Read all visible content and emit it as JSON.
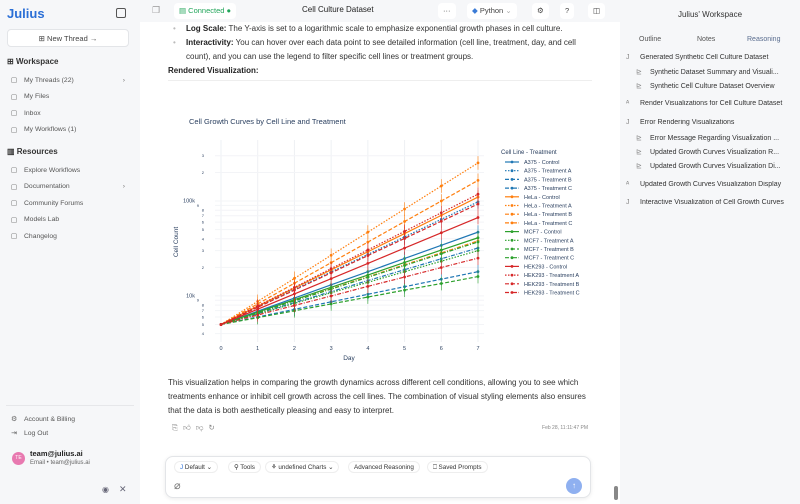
{
  "app": {
    "logo": "Julius",
    "new_thread": "New Thread →"
  },
  "sidebar": {
    "workspace": "Workspace",
    "workspace_items": [
      {
        "label": "My Threads (22)",
        "icon": "chat-icon",
        "chevron": true
      },
      {
        "label": "My Files",
        "icon": "file-icon"
      },
      {
        "label": "Inbox",
        "icon": "inbox-icon"
      },
      {
        "label": "My Workflows (1)",
        "icon": "workflow-icon"
      }
    ],
    "resources": "Resources",
    "resource_items": [
      {
        "label": "Explore Workflows",
        "icon": "trend-icon"
      },
      {
        "label": "Documentation",
        "icon": "book-icon",
        "chevron": true
      },
      {
        "label": "Community Forums",
        "icon": "users-icon"
      },
      {
        "label": "Models Lab",
        "icon": "flask-icon"
      },
      {
        "label": "Changelog",
        "icon": "history-icon"
      }
    ],
    "account": "Account & Billing",
    "logout": "Log Out",
    "user": {
      "initials": "TE",
      "name": "team@julius.ai",
      "sub": "Email • team@julius.ai",
      "avatar_color": "#e879b0"
    }
  },
  "topbar": {
    "status": "Connected",
    "status_color": "#22a55a",
    "title": "Cell Culture Dataset",
    "more": "···",
    "language": "Python"
  },
  "content": {
    "bullets": [
      {
        "bold": "Log Scale:",
        "text": " The Y-axis is set to a logarithmic scale to emphasize exponential growth phases in cell culture."
      },
      {
        "bold": "Interactivity:",
        "text": " You can hover over each data point to see detailed information (cell line, treatment, day, and cell count), and you can use the legend to filter specific cell lines or treatment groups."
      }
    ],
    "heading": "Rendered Visualization:",
    "summary": "This visualization helps in comparing the growth dynamics across different cell conditions, allowing you to see which treatments enhance or inhibit cell growth across the cell lines. The combination of visual styling elements also ensures that the data is both aesthetically pleasing and easy to interpret.",
    "timestamp": "Feb 28, 11:11:47 PM"
  },
  "chat": {
    "chips": [
      "Default",
      "Tools",
      "undefined Charts",
      "Advanced Reasoning",
      "Saved Prompts"
    ]
  },
  "right_panel": {
    "title": "Julius' Workspace",
    "tabs": [
      "Outline",
      "Notes",
      "Reasoning"
    ],
    "outline": [
      {
        "text": "Generated Synthetic Cell Culture Dataset",
        "level": 0,
        "mark": "J"
      },
      {
        "text": "Synthetic Dataset Summary and Visuali...",
        "level": 1,
        "mark": "⊵"
      },
      {
        "text": "Synthetic Cell Culture Dataset Overview",
        "level": 1,
        "mark": "⊵"
      },
      {
        "text": "Render Visualizations for Cell Culture Dataset",
        "level": 0,
        "mark": "ᴬ"
      },
      {
        "text": "Error Rendering Visualizations",
        "level": 0,
        "mark": "J"
      },
      {
        "text": "Error Message Regarding Visualization ...",
        "level": 1,
        "mark": "⊵"
      },
      {
        "text": "Updated Growth Curves Visualization R...",
        "level": 1,
        "mark": "⊵"
      },
      {
        "text": "Updated Growth Curves Visualization Di...",
        "level": 1,
        "mark": "⊵"
      },
      {
        "text": "Updated Growth Curves Visualization Display",
        "level": 0,
        "mark": "ᴬ"
      },
      {
        "text": "Interactive Visualization of Cell Growth Curves",
        "level": 0,
        "mark": "J"
      }
    ]
  },
  "chart_data": {
    "type": "line",
    "title": "Cell Growth Curves by Cell Line and Treatment",
    "xlabel": "Day",
    "ylabel": "Cell Count",
    "y_scale": "log",
    "ylim": [
      3600,
      380000
    ],
    "x": [
      0,
      1,
      2,
      3,
      4,
      5,
      6,
      7
    ],
    "y_ticks": [
      {
        "v": 4000,
        "l": "4"
      },
      {
        "v": 5000,
        "l": "5"
      },
      {
        "v": 6000,
        "l": "6"
      },
      {
        "v": 7000,
        "l": "7"
      },
      {
        "v": 8000,
        "l": "8"
      },
      {
        "v": 9000,
        "l": "9"
      },
      {
        "v": 10000,
        "l": "10k"
      },
      {
        "v": 20000,
        "l": "2"
      },
      {
        "v": 30000,
        "l": "3"
      },
      {
        "v": 40000,
        "l": "4"
      },
      {
        "v": 50000,
        "l": "5"
      },
      {
        "v": 60000,
        "l": "6"
      },
      {
        "v": 70000,
        "l": "7"
      },
      {
        "v": 80000,
        "l": "8"
      },
      {
        "v": 90000,
        "l": "9"
      },
      {
        "v": 100000,
        "l": "100k"
      },
      {
        "v": 200000,
        "l": "2"
      },
      {
        "v": 300000,
        "l": "3"
      }
    ],
    "legend_title": "Cell Line - Treatment",
    "legend": "right",
    "error_bars": true,
    "series": [
      {
        "name": "A375 - Control",
        "color": "#1f77b4",
        "dash": "solid",
        "values": [
          5000,
          6890,
          9480,
          13100,
          18000,
          24800,
          34100,
          47000
        ]
      },
      {
        "name": "A375 - Treatment A",
        "color": "#1f77b4",
        "dash": "dot",
        "values": [
          5000,
          7650,
          11700,
          17900,
          27400,
          41900,
          64100,
          98000
        ]
      },
      {
        "name": "A375 - Treatment B",
        "color": "#1f77b4",
        "dash": "dash",
        "values": [
          5000,
          6000,
          7210,
          8660,
          10400,
          12500,
          15000,
          18000
        ]
      },
      {
        "name": "A375 - Treatment C",
        "color": "#1f77b4",
        "dash": "dashdot",
        "values": [
          5000,
          6520,
          8500,
          11100,
          14500,
          18900,
          24600,
          32000
        ]
      },
      {
        "name": "HeLa - Control",
        "color": "#ff7f0e",
        "dash": "solid",
        "values": [
          5000,
          7780,
          12100,
          18800,
          29200,
          45400,
          70600,
          110000
        ]
      },
      {
        "name": "HeLa - Treatment A",
        "color": "#ff7f0e",
        "dash": "dot",
        "values": [
          5000,
          8760,
          15300,
          26800,
          47000,
          82300,
          144000,
          252000
        ]
      },
      {
        "name": "HeLa - Treatment B",
        "color": "#ff7f0e",
        "dash": "dash",
        "values": [
          5000,
          8240,
          13600,
          22400,
          36900,
          60800,
          100000,
          165000
        ]
      },
      {
        "name": "HeLa - Treatment C",
        "color": "#ff7f0e",
        "dash": "dashdot",
        "values": [
          5000,
          6680,
          8930,
          11900,
          15900,
          21300,
          28400,
          38000
        ]
      },
      {
        "name": "MCF7 - Control",
        "color": "#2ca02c",
        "dash": "solid",
        "values": [
          5000,
          6750,
          9120,
          12300,
          16600,
          22500,
          30400,
          41000
        ]
      },
      {
        "name": "MCF7 - Treatment A",
        "color": "#2ca02c",
        "dash": "dot",
        "values": [
          5000,
          6460,
          8340,
          10800,
          13900,
          18000,
          23200,
          30000
        ]
      },
      {
        "name": "MCF7 - Treatment B",
        "color": "#2ca02c",
        "dash": "dash",
        "values": [
          5000,
          5900,
          6970,
          8230,
          9720,
          11500,
          13500,
          16000
        ]
      },
      {
        "name": "MCF7 - Treatment C",
        "color": "#2ca02c",
        "dash": "dashdot",
        "values": [
          5000,
          6650,
          8860,
          11800,
          15700,
          20900,
          27800,
          37000
        ]
      },
      {
        "name": "HEK293 - Control",
        "color": "#d62728",
        "dash": "solid",
        "values": [
          5000,
          7240,
          10500,
          15200,
          22000,
          31900,
          46200,
          67000
        ]
      },
      {
        "name": "HEK293 - Treatment A",
        "color": "#d62728",
        "dash": "dot",
        "values": [
          5000,
          7850,
          12300,
          19400,
          30500,
          47900,
          75200,
          118000
        ]
      },
      {
        "name": "HEK293 - Treatment B",
        "color": "#d62728",
        "dash": "dash",
        "values": [
          5000,
          7590,
          11500,
          17500,
          26600,
          40300,
          61200,
          93000
        ]
      },
      {
        "name": "HEK293 - Treatment C",
        "color": "#d62728",
        "dash": "dashdot",
        "values": [
          5000,
          6290,
          7920,
          9970,
          12600,
          15800,
          19900,
          25000
        ]
      }
    ]
  }
}
